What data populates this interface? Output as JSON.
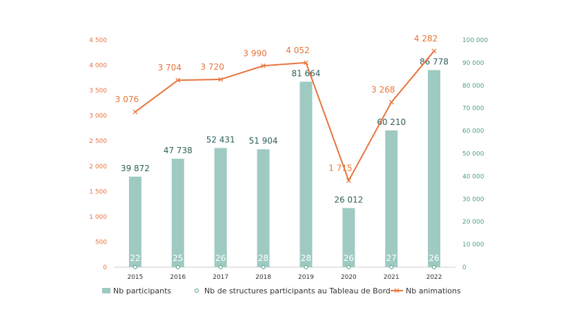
{
  "chart_data": {
    "type": "bar",
    "categories": [
      "2015",
      "2016",
      "2017",
      "2018",
      "2019",
      "2020",
      "2021",
      "2022"
    ],
    "series": [
      {
        "name": "Nb participants",
        "type": "bar",
        "axis": "right",
        "values": [
          39872,
          47738,
          52431,
          51904,
          81664,
          26012,
          60210,
          86778
        ],
        "labels": [
          "39 872",
          "47 738",
          "52 431",
          "51 904",
          "81 664",
          "26 012",
          "60 210",
          "86 778"
        ],
        "color": "#9ecac1"
      },
      {
        "name": "Nb de structures participants au Tableau de Bord",
        "type": "scatter",
        "values": [
          22,
          25,
          26,
          28,
          28,
          26,
          27,
          26
        ],
        "labels": [
          "22",
          "25",
          "26",
          "28",
          "28",
          "26",
          "27",
          "26"
        ],
        "color": "#4e9c8a"
      },
      {
        "name": "Nb animations",
        "type": "line",
        "axis": "left",
        "values": [
          3076,
          3704,
          3720,
          3990,
          4052,
          1715,
          3268,
          4282
        ],
        "labels": [
          "3 076",
          "3 704",
          "3 720",
          "3 990",
          "4 052",
          "1 715",
          "3 268",
          "4 282"
        ],
        "color": "#e8733a"
      }
    ],
    "y_left": {
      "ylim": [
        0,
        4500
      ],
      "ticks": [
        "0",
        "500",
        "1 000",
        "1 500",
        "2 000",
        "2 500",
        "3 000",
        "3 500",
        "4 000",
        "4 500"
      ],
      "color": "#e8733a"
    },
    "y_right": {
      "ylim": [
        0,
        100000
      ],
      "ticks": [
        "0",
        "10 000",
        "20 000",
        "30 000",
        "40 000",
        "50 000",
        "60 000",
        "70 000",
        "80 000",
        "90 000",
        "100 000"
      ],
      "color": "#4e9c8a"
    },
    "legend_position": "bottom",
    "grid": false
  }
}
